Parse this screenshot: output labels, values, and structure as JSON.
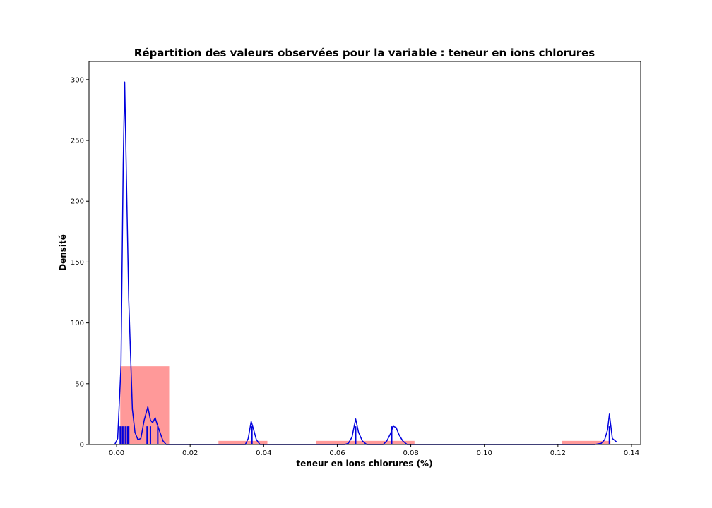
{
  "chart_data": {
    "type": "histogram",
    "title": "Répartition des valeurs observées pour la variable : teneur en ions chlorures",
    "xlabel": "teneur en ions chlorures (%)",
    "ylabel": "Densité",
    "xlim": [
      -0.0075,
      0.1425
    ],
    "ylim": [
      0,
      315
    ],
    "xticks": [
      0.0,
      0.02,
      0.04,
      0.06,
      0.08,
      0.1,
      0.12,
      0.14
    ],
    "xtick_labels": [
      "0.00",
      "0.02",
      "0.04",
      "0.06",
      "0.08",
      "0.10",
      "0.12",
      "0.14"
    ],
    "yticks": [
      0,
      50,
      100,
      150,
      200,
      250,
      300
    ],
    "ytick_labels": [
      "0",
      "50",
      "100",
      "150",
      "200",
      "250",
      "300"
    ],
    "grid": false,
    "colors": {
      "histogram": "#ff9999",
      "kde": "#0000dd",
      "rug": "#0000dd"
    },
    "histogram": [
      {
        "x0": 0.001,
        "x1": 0.0143,
        "density": 64.3
      },
      {
        "x0": 0.0143,
        "x1": 0.0277,
        "density": 0.0
      },
      {
        "x0": 0.0277,
        "x1": 0.041,
        "density": 3.0
      },
      {
        "x0": 0.041,
        "x1": 0.0543,
        "density": 0.0
      },
      {
        "x0": 0.0543,
        "x1": 0.0677,
        "density": 3.0
      },
      {
        "x0": 0.0677,
        "x1": 0.081,
        "density": 3.0
      },
      {
        "x0": 0.081,
        "x1": 0.0943,
        "density": 0.0
      },
      {
        "x0": 0.0943,
        "x1": 0.1077,
        "density": 0.0
      },
      {
        "x0": 0.1077,
        "x1": 0.121,
        "density": 0.0
      },
      {
        "x0": 0.121,
        "x1": 0.1343,
        "density": 3.0
      }
    ],
    "kde": {
      "x": [
        -0.0005,
        0.0003,
        0.0012,
        0.0018,
        0.0022,
        0.0028,
        0.0033,
        0.0043,
        0.005,
        0.0058,
        0.0066,
        0.0075,
        0.0085,
        0.0092,
        0.0098,
        0.0105,
        0.011,
        0.0118,
        0.0126,
        0.0135,
        0.015,
        0.035,
        0.0358,
        0.0366,
        0.0372,
        0.038,
        0.039,
        0.04,
        0.062,
        0.063,
        0.064,
        0.065,
        0.0658,
        0.0668,
        0.068,
        0.0725,
        0.0735,
        0.0745,
        0.0752,
        0.076,
        0.0768,
        0.0778,
        0.079,
        0.13,
        0.1318,
        0.1327,
        0.1335,
        0.134,
        0.1348,
        0.136
      ],
      "y": [
        0,
        5,
        65,
        230,
        298,
        200,
        120,
        29,
        10,
        4,
        5,
        20,
        31,
        20,
        18,
        22,
        17,
        10,
        3,
        0,
        0,
        0,
        5,
        19,
        13,
        4,
        0,
        0,
        0,
        1,
        6,
        21,
        10,
        3,
        0,
        0,
        3,
        9,
        15,
        14,
        8,
        3,
        0,
        0,
        1,
        4,
        12,
        25,
        5,
        2
      ]
    },
    "rug": [
      0.001,
      0.0016,
      0.002,
      0.0025,
      0.003,
      0.0033,
      0.0083,
      0.0092,
      0.0112,
      0.0368,
      0.065,
      0.0748,
      0.134
    ],
    "rug_height": 15
  }
}
